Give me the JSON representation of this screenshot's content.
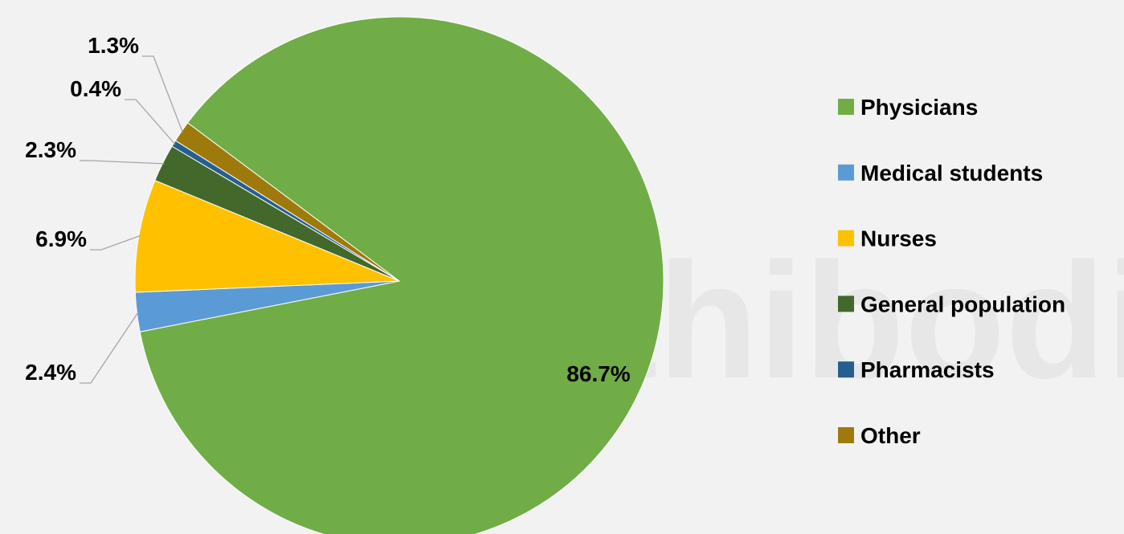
{
  "chart_data": {
    "type": "pie",
    "watermark": "Ramathibodi",
    "categories": [
      "Physicians",
      "Medical students",
      "Nurses",
      "General population",
      "Pharmacists",
      "Other"
    ],
    "values": [
      86.7,
      2.4,
      6.9,
      2.3,
      0.4,
      1.3
    ],
    "value_labels": [
      "86.7%",
      "2.4%",
      "6.9%",
      "2.3%",
      "0.4%",
      "1.3%"
    ],
    "colors": [
      "#70ad47",
      "#5b9bd5",
      "#ffc000",
      "#43682b",
      "#255e91",
      "#9e7a0c"
    ],
    "legend": "right"
  }
}
